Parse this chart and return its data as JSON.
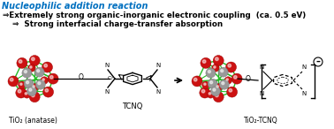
{
  "title_line1": "Nucleophilic addition reaction",
  "title_line1_color": "#0070C0",
  "line2": "⇒Extremely strong organic-inorganic electronic coupling  (ca. 0.5 eV)",
  "line3": "⇒  Strong interfacial charge-transfer absorption",
  "label_tio2": "TiO₂ (anatase)",
  "label_tcnq": "TCNQ",
  "label_product": "TiO₂-TCNQ",
  "bg_color": "#ffffff",
  "text_color": "#000000",
  "green_bond": "#22bb22",
  "red_o": "#cc1111",
  "gray_ti": "#999999",
  "fig_width": 3.78,
  "fig_height": 1.46,
  "dpi": 100
}
